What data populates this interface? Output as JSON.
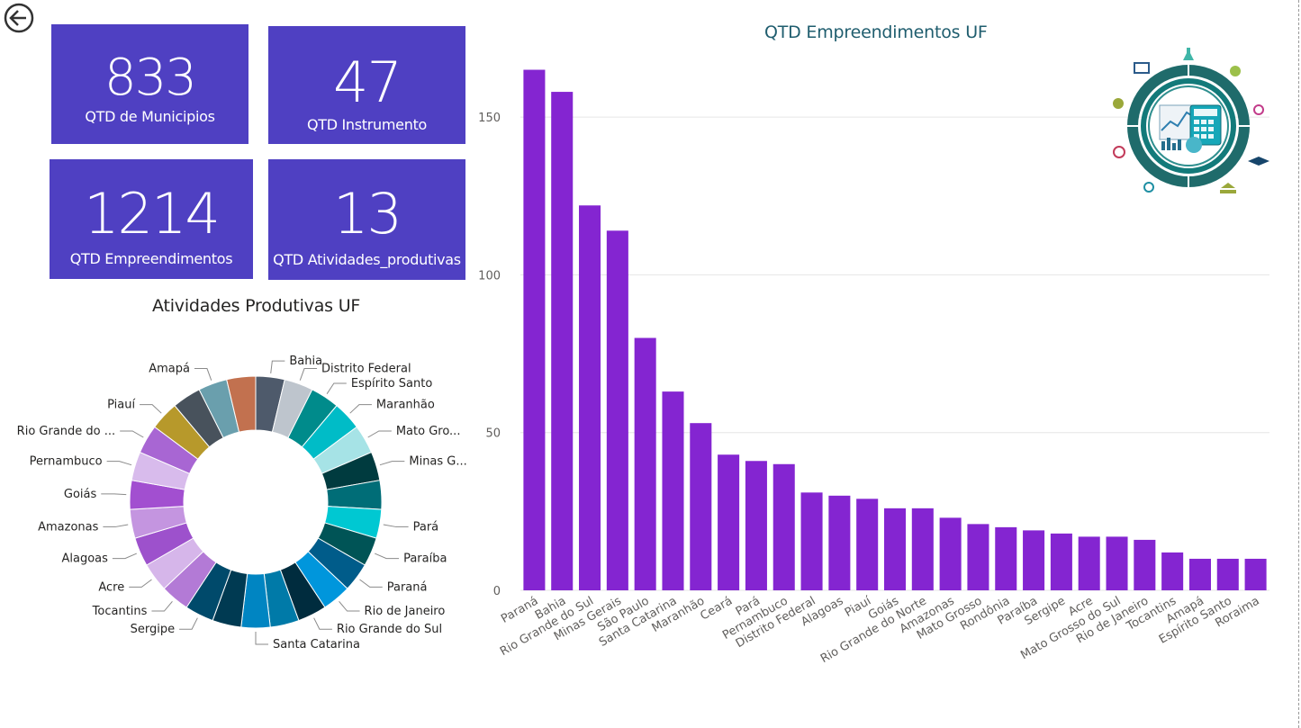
{
  "kpis": [
    {
      "value": "833",
      "label": "QTD de Municipios"
    },
    {
      "value": "47",
      "label": "QTD Instrumento"
    },
    {
      "value": "1214",
      "label": "QTD Empreendimentos"
    },
    {
      "value": "13",
      "label": "QTD Atividades_produtivas"
    }
  ],
  "donut_title": "Atividades Produtivas UF",
  "bar_title": "QTD Empreendimentos UF",
  "colors": {
    "kpi_bg": "#4f40c2",
    "bar": "#8425d1",
    "title_teal": "#1f5d6e"
  },
  "chart_data": [
    {
      "type": "pie",
      "title": "Atividades Produtivas UF",
      "slices": [
        {
          "label": "Bahia",
          "value": 4.5,
          "color": "#4e5a6b"
        },
        {
          "label": "Distrito Federal",
          "value": 4.5,
          "color": "#bec5cd"
        },
        {
          "label": "Espírito Santo",
          "value": 4.5,
          "color": "#008b8b"
        },
        {
          "label": "Maranhão",
          "value": 4.5,
          "color": "#00bcc7"
        },
        {
          "label": "Mato Gro...",
          "value": 4.5,
          "color": "#a6e3e6"
        },
        {
          "label": "Minas G...",
          "value": 4.5,
          "color": "#003b3f"
        },
        {
          "label": "",
          "value": 4.5,
          "color": "#006d77"
        },
        {
          "label": "Pará",
          "value": 4.5,
          "color": "#00c8d2"
        },
        {
          "label": "Paraíba",
          "value": 4.5,
          "color": "#005456"
        },
        {
          "label": "Paraná",
          "value": 4.5,
          "color": "#005c8a"
        },
        {
          "label": "Rio de Janeiro",
          "value": 4.5,
          "color": "#0096dc"
        },
        {
          "label": "Rio Grande do Sul",
          "value": 4.5,
          "color": "#002c3e"
        },
        {
          "label": "",
          "value": 4.5,
          "color": "#007aa8"
        },
        {
          "label": "Santa Catarina",
          "value": 4.5,
          "color": "#0085c2"
        },
        {
          "label": "",
          "value": 4.5,
          "color": "#003a52"
        },
        {
          "label": "Sergipe",
          "value": 4.5,
          "color": "#004a6b"
        },
        {
          "label": "Tocantins",
          "value": 4.5,
          "color": "#b37ad6"
        },
        {
          "label": "Acre",
          "value": 4.5,
          "color": "#d6b6ea"
        },
        {
          "label": "Alagoas",
          "value": 4.5,
          "color": "#9d51cc"
        },
        {
          "label": "Amazonas",
          "value": 4.5,
          "color": "#c495e0"
        },
        {
          "label": "Goiás",
          "value": 4.5,
          "color": "#a24fd0"
        },
        {
          "label": "Pernambuco",
          "value": 4.5,
          "color": "#d8bbec"
        },
        {
          "label": "Rio Grande do ...",
          "value": 4.5,
          "color": "#a866d3"
        },
        {
          "label": "Piauí",
          "value": 4.5,
          "color": "#b7992b"
        },
        {
          "label": "",
          "value": 4.5,
          "color": "#48525c"
        },
        {
          "label": "Amapá",
          "value": 4.5,
          "color": "#6a9fad"
        },
        {
          "label": "",
          "value": 4.5,
          "color": "#c2714f"
        }
      ]
    },
    {
      "type": "bar",
      "title": "QTD Empreendimentos UF",
      "categories": [
        "Paraná",
        "Bahia",
        "Rio Grande do Sul",
        "Minas Gerais",
        "São Paulo",
        "Santa Catarina",
        "Maranhão",
        "Ceará",
        "Pará",
        "Pernambuco",
        "Distrito Federal",
        "Alagoas",
        "Piauí",
        "Goiás",
        "Rio Grande do Norte",
        "Amazonas",
        "Mato Grosso",
        "Rondônia",
        "Paraíba",
        "Sergipe",
        "Acre",
        "Mato Grosso do Sul",
        "Rio de Janeiro",
        "Tocantins",
        "Amapá",
        "Espírito Santo",
        "Roraima"
      ],
      "values": [
        165,
        158,
        122,
        114,
        80,
        63,
        53,
        43,
        41,
        40,
        31,
        30,
        29,
        26,
        26,
        23,
        21,
        20,
        19,
        18,
        17,
        17,
        16,
        12,
        10,
        10,
        10
      ],
      "ylim": [
        0,
        170
      ],
      "yticks": [
        0,
        50,
        100,
        150
      ],
      "grid": true
    }
  ]
}
